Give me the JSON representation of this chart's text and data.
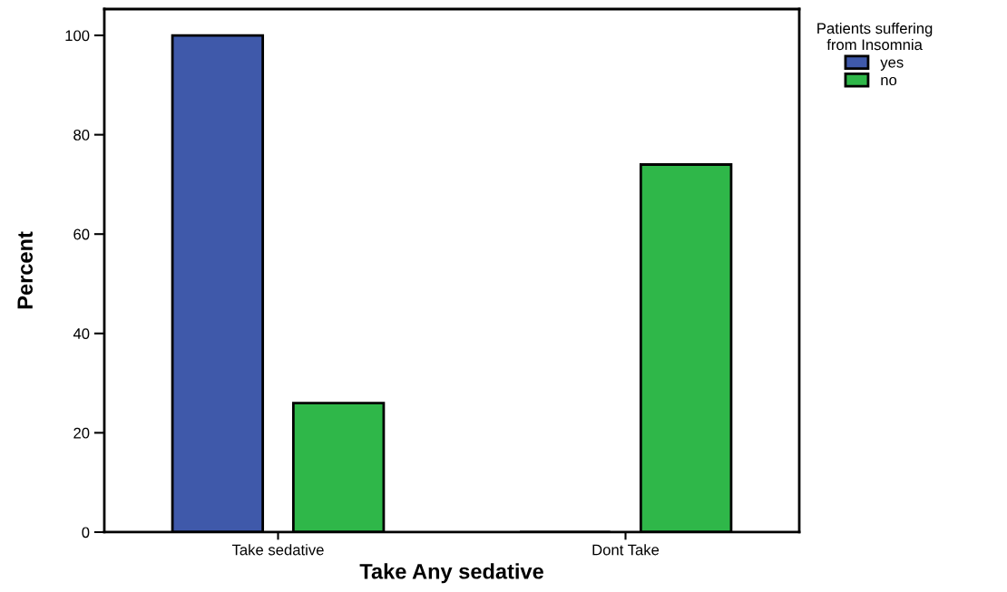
{
  "chart_data": {
    "type": "bar",
    "xlabel": "Take Any sedative",
    "ylabel": "Percent",
    "legend_title": "Patients suffering\nfrom Insomnia",
    "categories": [
      "Take sedative",
      "Dont Take"
    ],
    "series": [
      {
        "name": "yes",
        "color": "#3f59aa",
        "values": [
          100,
          0
        ]
      },
      {
        "name": "no",
        "color": "#2fb749",
        "values": [
          26,
          74
        ]
      }
    ],
    "ylim": [
      0,
      105.3
    ],
    "yticks": [
      0,
      20,
      40,
      60,
      80,
      100
    ],
    "grid": false,
    "legend": "top right"
  }
}
